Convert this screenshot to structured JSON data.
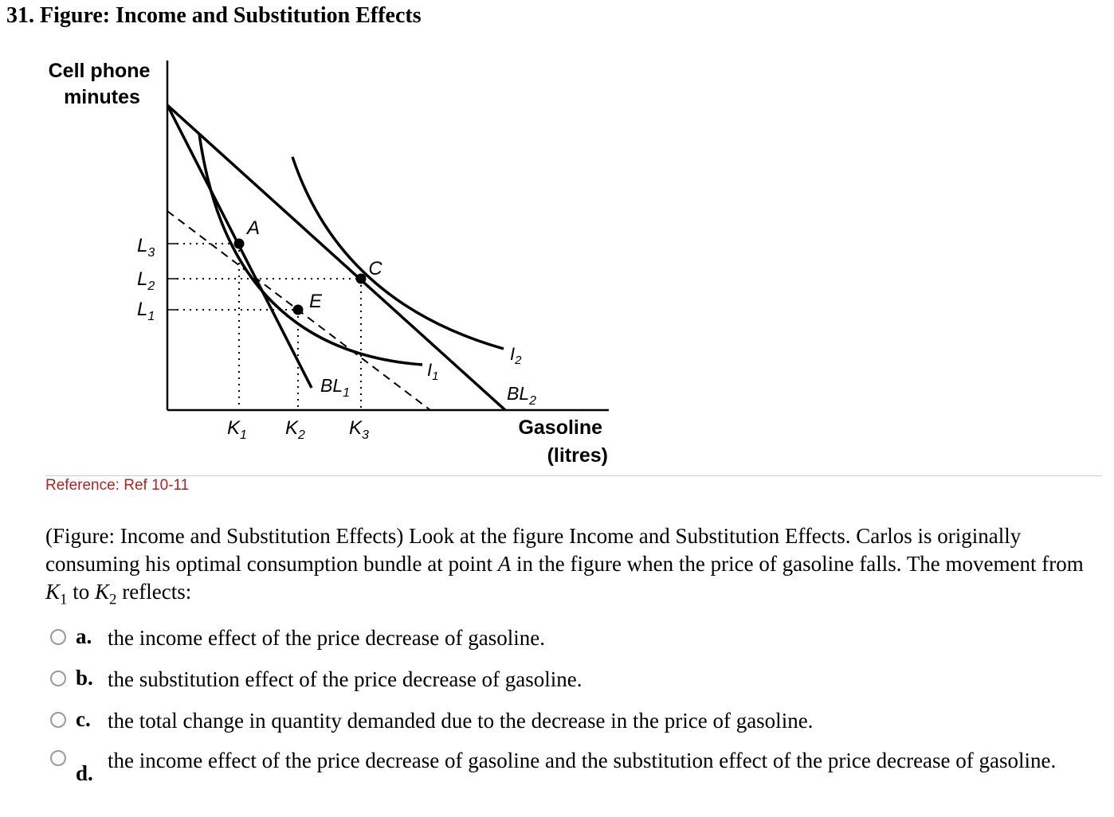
{
  "question": {
    "title": "31. Figure: Income and Substitution Effects",
    "reference": "Reference: Ref 10-11",
    "stem_part1": "(Figure: Income and Substitution Effects) Look at the figure Income and Substitution Effects. Carlos is originally consuming his optimal consumption bundle at point ",
    "stem_point": "A",
    "stem_part2": " in the figure when the price of gasoline falls. The movement from ",
    "stem_k": "K",
    "stem_k1_sub": "1",
    "stem_to": " to ",
    "stem_k2_sub": "2",
    "stem_part3": " reflects:"
  },
  "options": [
    {
      "letter": "a.",
      "text": "the income effect of the price decrease of gasoline."
    },
    {
      "letter": "b.",
      "text": "the substitution effect of the price decrease of gasoline."
    },
    {
      "letter": "c.",
      "text": "the total change in quantity demanded due to the decrease in the price of gasoline."
    },
    {
      "letter": "d.",
      "text": "the income effect of the price decrease of gasoline and the substitution effect of the price decrease of gasoline."
    }
  ],
  "figure": {
    "y_axis_label_line1": "Cell phone",
    "y_axis_label_line2": "minutes",
    "x_axis_label_line1": "Gasoline",
    "x_axis_label_line2": "(litres)",
    "y_ticks": [
      {
        "base": "L",
        "sub": "3"
      },
      {
        "base": "L",
        "sub": "2"
      },
      {
        "base": "L",
        "sub": "1"
      }
    ],
    "x_ticks": [
      {
        "base": "K",
        "sub": "1"
      },
      {
        "base": "K",
        "sub": "2"
      },
      {
        "base": "K",
        "sub": "3"
      }
    ],
    "point_labels": {
      "a": "A",
      "c": "C",
      "e": "E"
    },
    "curve_labels": {
      "i1": {
        "base": "I",
        "sub": "1"
      },
      "i2": {
        "base": "I",
        "sub": "2"
      },
      "bl1": {
        "base": "BL",
        "sub": "1"
      },
      "bl2": {
        "base": "BL",
        "sub": "2"
      }
    }
  }
}
